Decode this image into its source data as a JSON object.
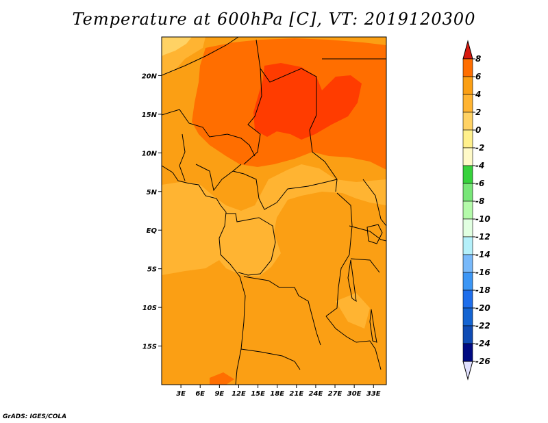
{
  "title": "Temperature at 600hPa [C], VT: 2019120300",
  "credit": "GrADS: IGES/COLA",
  "map": {
    "lon_range": [
      0,
      35
    ],
    "lat_range": [
      -20,
      25
    ],
    "lat_ticks": [
      {
        "value": 20,
        "label": "20N"
      },
      {
        "value": 15,
        "label": "15N"
      },
      {
        "value": 10,
        "label": "10N"
      },
      {
        "value": 5,
        "label": "5N"
      },
      {
        "value": 0,
        "label": "EQ"
      },
      {
        "value": -5,
        "label": "5S"
      },
      {
        "value": -10,
        "label": "10S"
      },
      {
        "value": -15,
        "label": "15S"
      }
    ],
    "lon_ticks": [
      {
        "value": 3,
        "label": "3E"
      },
      {
        "value": 6,
        "label": "6E"
      },
      {
        "value": 9,
        "label": "9E"
      },
      {
        "value": 12,
        "label": "12E"
      },
      {
        "value": 15,
        "label": "15E"
      },
      {
        "value": 18,
        "label": "18E"
      },
      {
        "value": 21,
        "label": "21E"
      },
      {
        "value": 24,
        "label": "24E"
      },
      {
        "value": 27,
        "label": "27E"
      },
      {
        "value": 30,
        "label": "30E"
      },
      {
        "value": 33,
        "label": "33E"
      }
    ],
    "background_color": "#fb9f14"
  },
  "colorbar": {
    "levels": [
      {
        "label": "8",
        "color": "#ff3c00"
      },
      {
        "label": "6",
        "color": "#ff6e00"
      },
      {
        "label": "4",
        "color": "#fb9f14"
      },
      {
        "label": "2",
        "color": "#ffb432"
      },
      {
        "label": "0",
        "color": "#ffd264"
      },
      {
        "label": "-2",
        "color": "#fff08c"
      },
      {
        "label": "-4",
        "color": "#fffac8"
      },
      {
        "label": "-6",
        "color": "#37d23c"
      },
      {
        "label": "-8",
        "color": "#78e678"
      },
      {
        "label": "-10",
        "color": "#b4faaa"
      },
      {
        "label": "-12",
        "color": "#e1ffe1"
      },
      {
        "label": "-14",
        "color": "#b4f0fa"
      },
      {
        "label": "-16",
        "color": "#78b9fa"
      },
      {
        "label": "-18",
        "color": "#3c96f5"
      },
      {
        "label": "-20",
        "color": "#1e6eeb"
      },
      {
        "label": "-22",
        "color": "#1464d2"
      },
      {
        "label": "-24",
        "color": "#0f4bb4"
      },
      {
        "label": "-26",
        "color": "#000a82"
      }
    ],
    "top_arrow_color": "#d7190f",
    "bottom_arrow_color": "#e1e1ff"
  }
}
